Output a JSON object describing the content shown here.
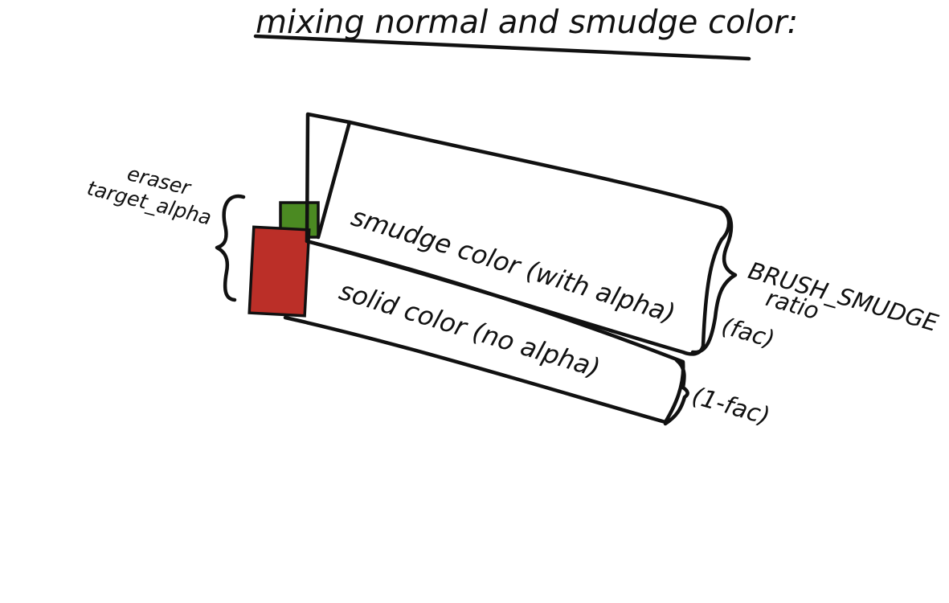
{
  "title": "mixing normal and smudge color:",
  "boxes": {
    "smudge_label": "smudge color (with alpha)",
    "solid_label": "solid color (no alpha)"
  },
  "annotations": {
    "eraser_line1": "eraser",
    "eraser_line2": "target_alpha",
    "brush_line1": "BRUSH_SMUDGE",
    "brush_line2": "ratio",
    "brush_line3": "(fac)",
    "one_minus_fac": "(1-fac)"
  },
  "colors": {
    "ink": "#111111",
    "eraser_green": "#4b8a22",
    "solid_red": "#bb2f28",
    "background": "#ffffff"
  }
}
